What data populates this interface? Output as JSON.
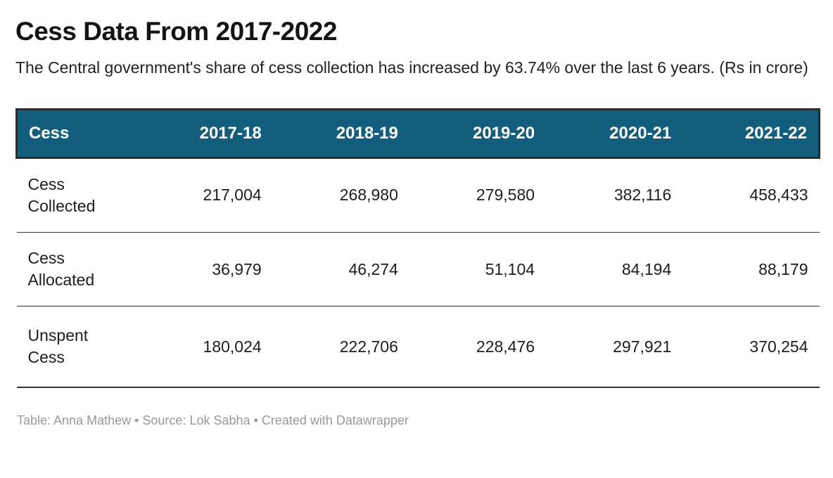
{
  "header": {
    "title": "Cess Data From 2017-2022",
    "subtitle": "The Central government's share of cess collection has increased by 63.74% over the last 6 years. (Rs in crore)"
  },
  "chart_data": {
    "type": "table",
    "title": "Cess Data From 2017-2022",
    "subtitle": "The Central government's share of cess collection has increased by 63.74% over the last 6 years. (Rs in crore)",
    "columns": [
      "Cess",
      "2017-18",
      "2018-19",
      "2019-20",
      "2020-21",
      "2021-22"
    ],
    "rows": [
      {
        "label": "Cess Collected",
        "values": [
          "217,004",
          "268,980",
          "279,580",
          "382,116",
          "458,433"
        ]
      },
      {
        "label": "Cess Allocated",
        "values": [
          "36,979",
          "46,274",
          "51,104",
          "84,194",
          "88,179"
        ]
      },
      {
        "label": "Unspent Cess",
        "values": [
          "180,024",
          "222,706",
          "228,476",
          "297,921",
          "370,254"
        ]
      }
    ],
    "rows_numeric": [
      {
        "label": "Cess Collected",
        "values": [
          217004,
          268980,
          279580,
          382116,
          458433
        ]
      },
      {
        "label": "Cess Allocated",
        "values": [
          36979,
          46274,
          51104,
          84194,
          88179
        ]
      },
      {
        "label": "Unspent Cess",
        "values": [
          180024,
          222706,
          228476,
          297921,
          370254
        ]
      }
    ]
  },
  "footer": {
    "text": "Table: Anna Mathew • Source: Lok Sabha • Created with Datawrapper"
  },
  "colors": {
    "header_bg": "#135e7d",
    "header_border": "#2b2b2b",
    "row_divider": "#333333",
    "header_text": "#ffffff",
    "title_text": "#141414",
    "body_text": "#1d1d1d",
    "footer_text": "#999999"
  }
}
